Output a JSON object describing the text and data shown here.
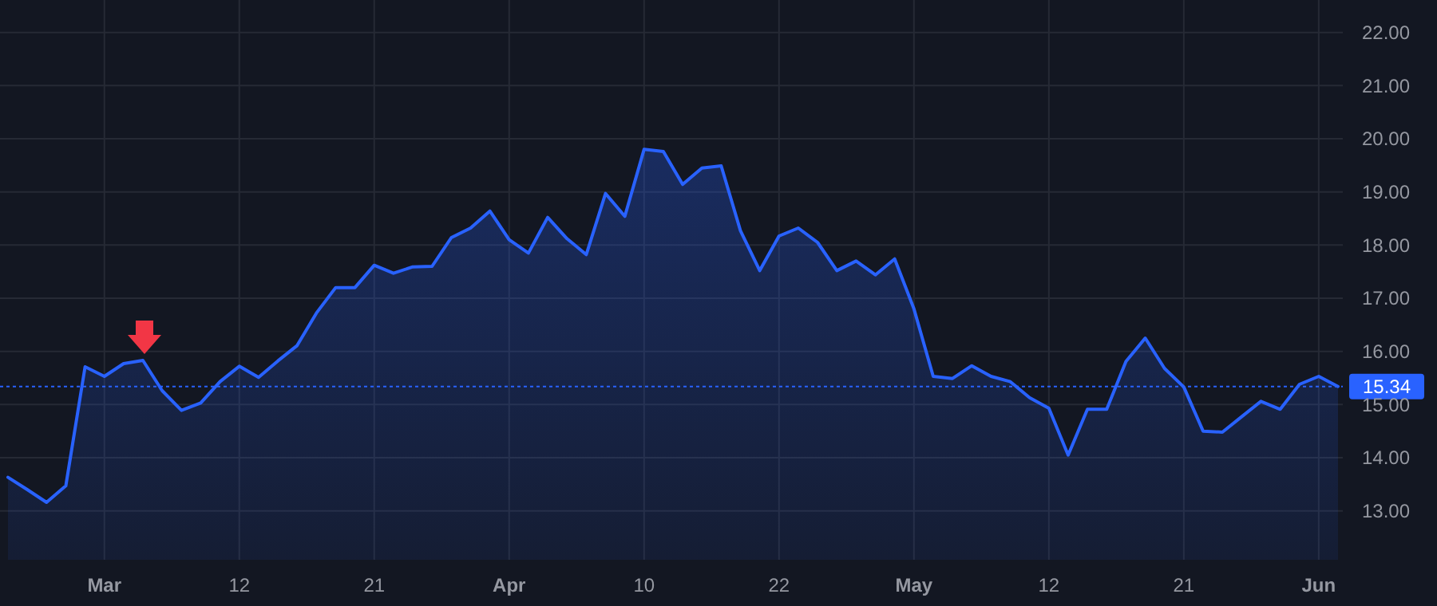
{
  "chart_data": {
    "type": "area",
    "categories": [
      null,
      null,
      null,
      null,
      null,
      "Mar",
      null,
      null,
      null,
      null,
      null,
      null,
      "12",
      null,
      null,
      null,
      null,
      null,
      null,
      "21",
      null,
      null,
      null,
      null,
      null,
      null,
      "Apr",
      null,
      null,
      null,
      null,
      null,
      null,
      "10",
      null,
      null,
      null,
      null,
      null,
      null,
      "22",
      null,
      null,
      null,
      null,
      null,
      null,
      "May",
      null,
      null,
      null,
      null,
      null,
      null,
      "12",
      null,
      null,
      null,
      null,
      null,
      null,
      "21",
      null,
      null,
      null,
      null,
      null,
      null,
      "Jun",
      null
    ],
    "series": [
      {
        "color": "#2962ff",
        "values": [
          13.63,
          13.4,
          13.16,
          13.47,
          15.71,
          15.53,
          15.77,
          15.83,
          15.26,
          14.89,
          15.03,
          15.43,
          15.72,
          15.51,
          15.82,
          16.11,
          16.72,
          17.2,
          17.2,
          17.62,
          17.47,
          17.59,
          17.6,
          18.14,
          18.32,
          18.64,
          18.1,
          17.85,
          18.52,
          18.12,
          17.82,
          18.97,
          18.54,
          19.8,
          19.76,
          19.14,
          19.45,
          19.49,
          18.27,
          17.52,
          18.17,
          18.32,
          18.05,
          17.52,
          17.7,
          17.44,
          17.74,
          16.8,
          15.53,
          15.49,
          15.73,
          15.53,
          15.43,
          15.13,
          14.93,
          14.05,
          14.91,
          14.91,
          15.81,
          16.25,
          15.68,
          15.33,
          14.5,
          14.48,
          14.77,
          15.06,
          14.91,
          15.38,
          15.53,
          15.34
        ]
      }
    ],
    "ylim": [
      12.08,
      22.61
    ],
    "yticks": [
      {
        "value": 13,
        "label": "13.00"
      },
      {
        "value": 14,
        "label": "14.00"
      },
      {
        "value": 15,
        "label": "15.00"
      },
      {
        "value": 16,
        "label": "16.00"
      },
      {
        "value": 17,
        "label": "17.00"
      },
      {
        "value": 18,
        "label": "18.00"
      },
      {
        "value": 19,
        "label": "19.00"
      },
      {
        "value": 20,
        "label": "20.00"
      },
      {
        "value": 21,
        "label": "21.00"
      },
      {
        "value": 22,
        "label": "22.00"
      }
    ],
    "grid": true,
    "ref_lines": [
      {
        "axis": "y",
        "value": 15.34,
        "label": "15.34",
        "color": "#2962ff",
        "line_style": "dotted"
      }
    ]
  }
}
